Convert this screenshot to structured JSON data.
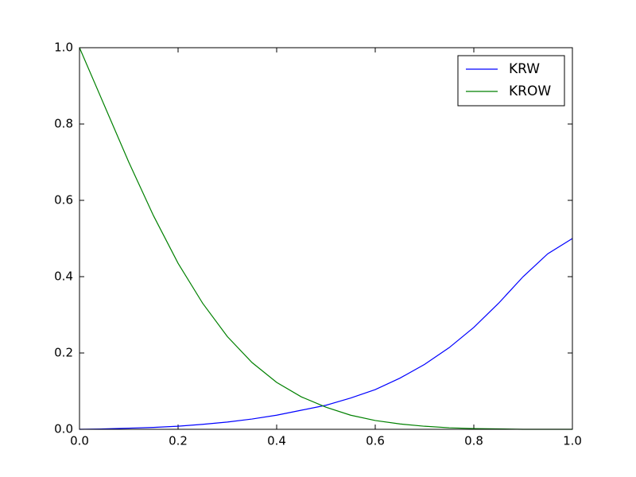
{
  "chart_data": {
    "type": "line",
    "x": [
      0,
      0.05,
      0.1,
      0.15,
      0.2,
      0.25,
      0.3,
      0.35,
      0.4,
      0.45,
      0.5,
      0.55,
      0.6,
      0.65,
      0.7,
      0.75,
      0.8,
      0.85,
      0.9,
      0.95,
      1.0
    ],
    "series": [
      {
        "name": "KRW",
        "color": "#0000ff",
        "values": [
          0,
          0.001,
          0.003,
          0.005,
          0.008,
          0.013,
          0.019,
          0.027,
          0.037,
          0.05,
          0.063,
          0.082,
          0.104,
          0.134,
          0.17,
          0.214,
          0.267,
          0.33,
          0.4,
          0.46,
          0.5
        ]
      },
      {
        "name": "KROW",
        "color": "#008000",
        "values": [
          1.0,
          0.85,
          0.7,
          0.56,
          0.435,
          0.33,
          0.243,
          0.175,
          0.123,
          0.085,
          0.058,
          0.037,
          0.023,
          0.014,
          0.008,
          0.004,
          0.002,
          0.001,
          0,
          0,
          0
        ]
      }
    ],
    "xlim": [
      0,
      1.0
    ],
    "ylim": [
      0,
      1.0
    ],
    "xticks": [
      {
        "value": 0,
        "label": "0.0"
      },
      0.2,
      0.4,
      0.6,
      0.8,
      {
        "value": 1,
        "label": "1.0"
      }
    ],
    "yticks": [
      {
        "value": 0,
        "label": "0.0"
      },
      0.2,
      0.4,
      0.6,
      0.8,
      {
        "value": 1,
        "label": "1.0"
      }
    ],
    "grid": false,
    "legend": "upper right"
  }
}
